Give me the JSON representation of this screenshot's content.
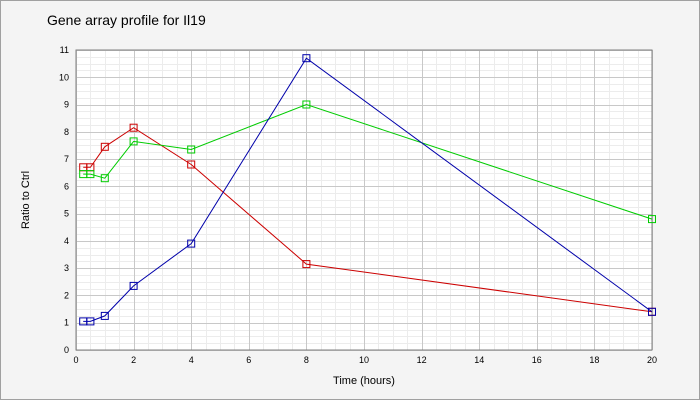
{
  "chart_data": {
    "type": "line",
    "title": "Gene array profile for Il19",
    "xlabel": "Time (hours)",
    "ylabel": "Ratio to Ctrl",
    "xlim": [
      0,
      20
    ],
    "ylim": [
      0,
      11
    ],
    "x_ticks": [
      0,
      2,
      4,
      6,
      8,
      10,
      12,
      14,
      16,
      18,
      20
    ],
    "y_ticks": [
      0,
      1,
      2,
      3,
      4,
      5,
      6,
      7,
      8,
      9,
      10,
      11
    ],
    "grid": true,
    "marker": "square",
    "series": [
      {
        "color": "#cc0000",
        "points": [
          [
            0.25,
            6.7
          ],
          [
            0.5,
            6.7
          ],
          [
            1,
            7.45
          ],
          [
            2,
            8.15
          ],
          [
            4,
            6.8
          ],
          [
            8,
            3.15
          ],
          [
            20,
            1.4
          ]
        ]
      },
      {
        "color": "#00cc00",
        "points": [
          [
            0.25,
            6.45
          ],
          [
            0.5,
            6.45
          ],
          [
            1,
            6.3
          ],
          [
            2,
            7.65
          ],
          [
            4,
            7.35
          ],
          [
            8,
            9.0
          ],
          [
            20,
            4.8
          ]
        ]
      },
      {
        "color": "#0000aa",
        "points": [
          [
            0.25,
            1.05
          ],
          [
            0.5,
            1.05
          ],
          [
            1,
            1.25
          ],
          [
            2,
            2.35
          ],
          [
            4,
            3.9
          ],
          [
            8,
            10.7
          ],
          [
            20,
            1.4
          ]
        ]
      }
    ]
  }
}
